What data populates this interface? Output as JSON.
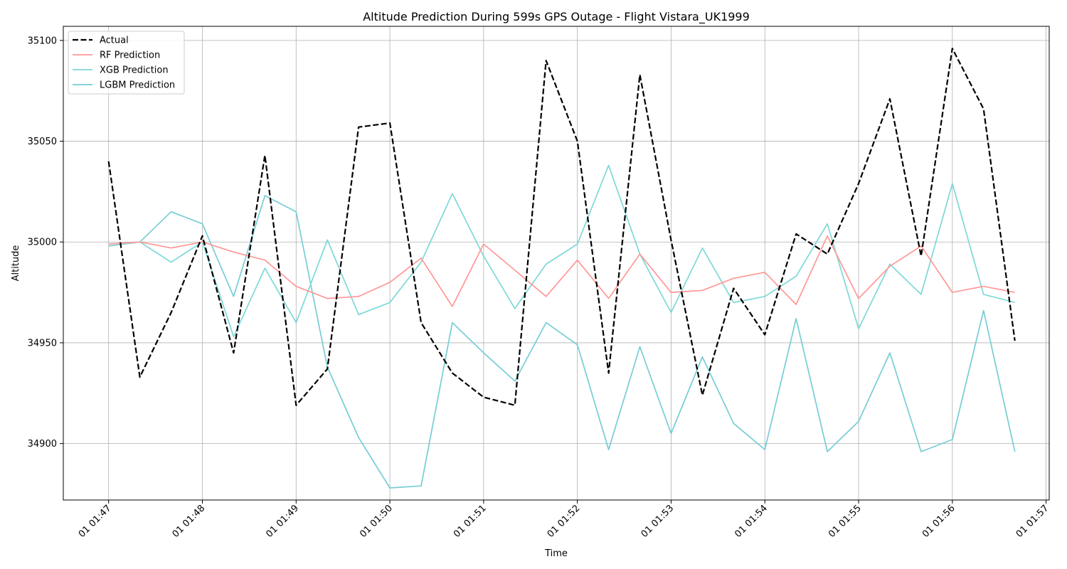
{
  "chart_data": {
    "type": "line",
    "title": "Altitude Prediction During 599s GPS Outage - Flight Vistara_UK1999",
    "xlabel": "Time",
    "ylabel": "Altitude",
    "xlim": [
      "01:46:31",
      "01:57:02"
    ],
    "ylim": [
      34872,
      35107
    ],
    "grid": true,
    "legend": "top-left",
    "x_ticks": [
      "01 01:47",
      "01 01:48",
      "01 01:49",
      "01 01:50",
      "01 01:51",
      "01 01:52",
      "01 01:53",
      "01 01:54",
      "01 01:55",
      "01 01:56",
      "01 01:57"
    ],
    "y_ticks": [
      34900,
      34950,
      35000,
      35050,
      35100
    ],
    "x": [
      "01:47:00",
      "01:47:20",
      "01:47:40",
      "01:48:00",
      "01:48:20",
      "01:48:40",
      "01:49:00",
      "01:49:20",
      "01:49:40",
      "01:50:00",
      "01:50:20",
      "01:50:40",
      "01:51:00",
      "01:51:20",
      "01:51:40",
      "01:52:00",
      "01:52:20",
      "01:52:40",
      "01:53:00",
      "01:53:20",
      "01:53:40",
      "01:54:00",
      "01:54:20",
      "01:54:40",
      "01:55:00",
      "01:55:20",
      "01:55:40",
      "01:56:00",
      "01:56:20",
      "01:56:40"
    ],
    "series": [
      {
        "name": "Actual",
        "color": "#000000",
        "dash": true,
        "values": [
          35040,
          34933,
          34965,
          35003,
          34945,
          35043,
          34919,
          34937,
          35057,
          35059,
          34960,
          34935,
          34923,
          34919,
          35090,
          35050,
          34935,
          35083,
          35001,
          34924,
          34977,
          34954,
          35004,
          34994,
          35029,
          35071,
          34993,
          35096,
          35066,
          34951
        ]
      },
      {
        "name": "RF Prediction",
        "color": "#ff9896",
        "dash": false,
        "values": [
          34999,
          35000,
          34997,
          35000,
          34995,
          34991,
          34978,
          34972,
          34973,
          34980,
          34992,
          34968,
          34999,
          34986,
          34973,
          34991,
          34972,
          34994,
          34975,
          34976,
          34982,
          34985,
          34969,
          35003,
          34972,
          34988,
          34998,
          34975,
          34978,
          34975
        ]
      },
      {
        "name": "XGB Prediction",
        "color": "#7ed8d8",
        "dash": false,
        "values": [
          34998,
          35000,
          34990,
          35000,
          34953,
          34987,
          34960,
          35001,
          34964,
          34970,
          34990,
          35024,
          34993,
          34967,
          34989,
          34999,
          35038,
          34994,
          34965,
          34997,
          34970,
          34973,
          34983,
          35009,
          34957,
          34989,
          34974,
          35029,
          34974,
          34970
        ]
      },
      {
        "name": "LGBM Prediction",
        "color": "#76cdd6",
        "dash": false,
        "values": [
          34998,
          35000,
          35015,
          35009,
          34973,
          35023,
          35015,
          34938,
          34903,
          34878,
          34879,
          34960,
          34945,
          34931,
          34960,
          34949,
          34897,
          34948,
          34905,
          34943,
          34910,
          34897,
          34962,
          34896,
          34911,
          34945,
          34896,
          34902,
          34966,
          34896
        ]
      }
    ]
  }
}
